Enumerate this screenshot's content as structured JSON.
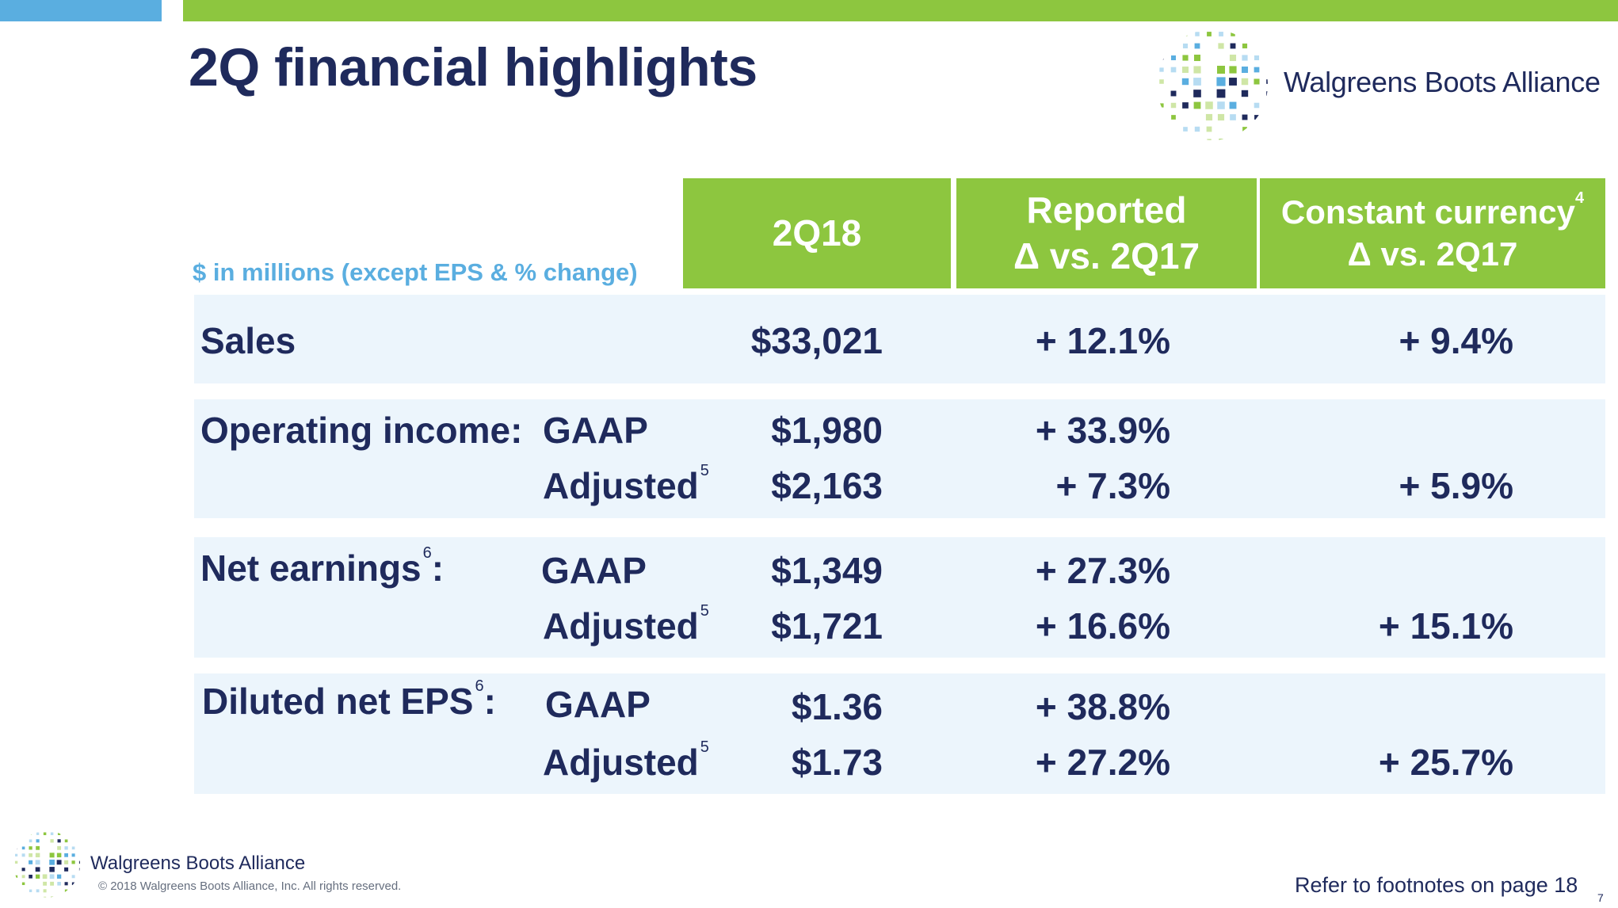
{
  "slide": {
    "title": "2Q financial highlights",
    "units_note": "$ in millions (except EPS & % change)",
    "page_number": "7"
  },
  "brand": {
    "name": "Walgreens Boots Alliance",
    "colors": {
      "navy": "#1f2a5c",
      "green": "#8dc63f",
      "blue": "#5aaee0",
      "band": "#ecf5fc"
    }
  },
  "table": {
    "headers": {
      "period": "2Q18",
      "reported_line1": "Reported",
      "reported_line2": "Δ vs. 2Q17",
      "constant_line1": "Constant currency",
      "constant_note": "4",
      "constant_line2": "Δ vs. 2Q17"
    },
    "rows": {
      "sales": {
        "label": "Sales",
        "value": "$33,021",
        "reported": "+ 12.1%",
        "constant": "+ 9.4%"
      },
      "operating_income": {
        "label": "Operating income:",
        "gaap": {
          "label": "GAAP",
          "value": "$1,980",
          "reported": "+ 33.9%"
        },
        "adjusted": {
          "label": "Adjusted",
          "note": "5",
          "value": "$2,163",
          "reported": "+ 7.3%",
          "constant": "+ 5.9%"
        }
      },
      "net_earnings": {
        "label": "Net earnings",
        "note": "6",
        "colon": ":",
        "gaap": {
          "label": "GAAP",
          "value": "$1,349",
          "reported": "+ 27.3%"
        },
        "adjusted": {
          "label": "Adjusted",
          "note": "5",
          "value": "$1,721",
          "reported": "+ 16.6%",
          "constant": "+ 15.1%"
        }
      },
      "diluted_eps": {
        "label": "Diluted net EPS",
        "note": "6",
        "colon": ":",
        "gaap": {
          "label": "GAAP",
          "value": "$1.36",
          "reported": "+ 38.8%"
        },
        "adjusted": {
          "label": "Adjusted",
          "note": "5",
          "value": "$1.73",
          "reported": "+ 27.2%",
          "constant": "+ 25.7%"
        }
      }
    }
  },
  "footer": {
    "copyright": "© 2018 Walgreens Boots Alliance, Inc.  All rights reserved.",
    "footnote_ref": "Refer to footnotes on page 18"
  }
}
